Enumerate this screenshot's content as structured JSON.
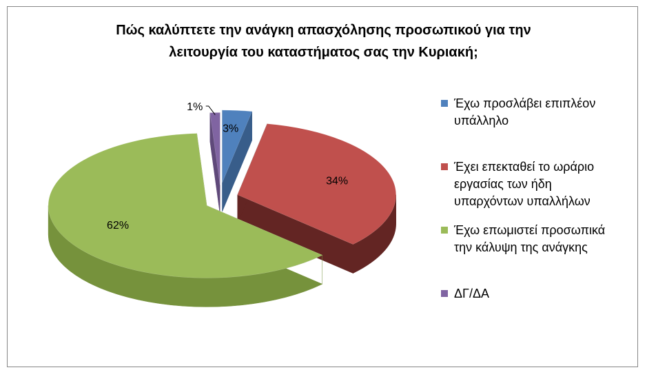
{
  "chart_data": {
    "type": "pie",
    "title_lines": [
      "Πώς καλύπτετε την ανάγκη απασχόλησης προσωπικού για την",
      "λειτουργία του καταστήματος σας την Κυριακή;"
    ],
    "slices": [
      {
        "label_lines": [
          "Έχω προσλάβει επιπλέον",
          "υπάλληλο"
        ],
        "value": 3,
        "value_label": "3%",
        "color": "#4F81BD",
        "side_color": "#385D8A"
      },
      {
        "label_lines": [
          "Έχει επεκταθεί το ωράριο",
          "εργασίας των ήδη",
          "υπαρχόντων υπαλλήλων"
        ],
        "value": 34,
        "value_label": "34%",
        "color": "#C0504D",
        "side_color": "#632523"
      },
      {
        "label_lines": [
          "Έχω επωμιστεί προσωπικά",
          "την κάλυψη της ανάγκης"
        ],
        "value": 62,
        "value_label": "62%",
        "color": "#9BBB59",
        "side_color": "#76923C"
      },
      {
        "label_lines": [
          "ΔΓ/ΔΑ"
        ],
        "value": 1,
        "value_label": "1%",
        "color": "#8064A2",
        "side_color": "#5F497A"
      }
    ],
    "legend_position": "right",
    "style": "3d-exploded-pie"
  }
}
